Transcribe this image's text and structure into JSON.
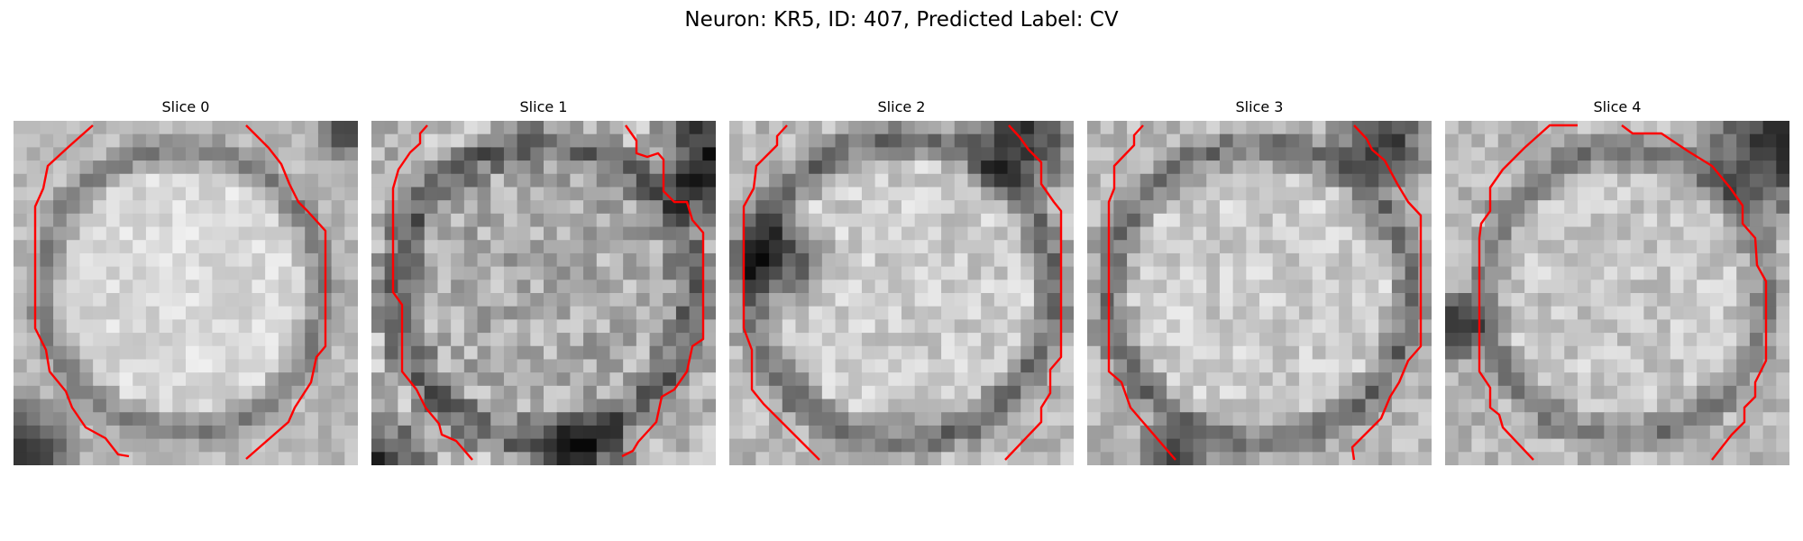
{
  "figure": {
    "title": "Neuron: KR5, ID: 407, Predicted Label: CV"
  },
  "panels": [
    {
      "title": "Slice 0"
    },
    {
      "title": "Slice 1"
    },
    {
      "title": "Slice 2"
    },
    {
      "title": "Slice 3"
    },
    {
      "title": "Slice 4"
    }
  ],
  "colors": {
    "contour": "#ff0000",
    "background": "#ffffff"
  }
}
